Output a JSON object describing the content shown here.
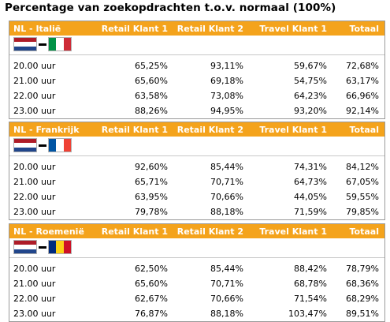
{
  "title": "Percentage van zoekopdrachten t.o.v. normaal (100%)",
  "columns": {
    "retail1": "Retail Klant 1",
    "retail2": "Retail Klant 2",
    "travel1": "Travel Klant 1",
    "total": "Totaal"
  },
  "sections": [
    {
      "label": "NL - Italië",
      "flag_left": {
        "name": "netherlands-flag",
        "orientation": "horizontal",
        "colors": [
          "#ae1c28",
          "#ffffff",
          "#21468b"
        ]
      },
      "flag_right": {
        "name": "italy-flag",
        "orientation": "vertical",
        "colors": [
          "#009246",
          "#ffffff",
          "#ce2b37"
        ]
      },
      "rows": [
        {
          "time": "20.00 uur",
          "retail1": "65,25%",
          "retail2": "93,11%",
          "travel1": "59,67%",
          "total": "72,68%"
        },
        {
          "time": "21.00 uur",
          "retail1": "65,60%",
          "retail2": "69,18%",
          "travel1": "54,75%",
          "total": "63,17%"
        },
        {
          "time": "22.00 uur",
          "retail1": "63,58%",
          "retail2": "73,08%",
          "travel1": "64,23%",
          "total": "66,96%"
        },
        {
          "time": "23.00 uur",
          "retail1": "88,26%",
          "retail2": "94,95%",
          "travel1": "93,20%",
          "total": "92,14%"
        }
      ]
    },
    {
      "label": "NL - Frankrijk",
      "flag_left": {
        "name": "netherlands-flag",
        "orientation": "horizontal",
        "colors": [
          "#ae1c28",
          "#ffffff",
          "#21468b"
        ]
      },
      "flag_right": {
        "name": "france-flag",
        "orientation": "vertical",
        "colors": [
          "#0055a4",
          "#ffffff",
          "#ef4135"
        ]
      },
      "rows": [
        {
          "time": "20.00 uur",
          "retail1": "92,60%",
          "retail2": "85,44%",
          "travel1": "74,31%",
          "total": "84,12%"
        },
        {
          "time": "21.00 uur",
          "retail1": "65,71%",
          "retail2": "70,71%",
          "travel1": "64,73%",
          "total": "67,05%"
        },
        {
          "time": "22.00 uur",
          "retail1": "63,95%",
          "retail2": "70,66%",
          "travel1": "44,05%",
          "total": "59,55%"
        },
        {
          "time": "23.00 uur",
          "retail1": "79,78%",
          "retail2": "88,18%",
          "travel1": "71,59%",
          "total": "79,85%"
        }
      ]
    },
    {
      "label": "NL - Roemenië",
      "flag_left": {
        "name": "netherlands-flag",
        "orientation": "horizontal",
        "colors": [
          "#ae1c28",
          "#ffffff",
          "#21468b"
        ]
      },
      "flag_right": {
        "name": "romania-flag",
        "orientation": "vertical",
        "colors": [
          "#002b7f",
          "#fcd116",
          "#ce1126"
        ]
      },
      "rows": [
        {
          "time": "20.00 uur",
          "retail1": "62,50%",
          "retail2": "85,44%",
          "travel1": "88,42%",
          "total": "78,79%"
        },
        {
          "time": "21.00 uur",
          "retail1": "65,60%",
          "retail2": "70,71%",
          "travel1": "68,78%",
          "total": "68,36%"
        },
        {
          "time": "22.00 uur",
          "retail1": "62,67%",
          "retail2": "70,66%",
          "travel1": "71,54%",
          "total": "68,29%"
        },
        {
          "time": "23.00 uur",
          "retail1": "76,87%",
          "retail2": "88,18%",
          "travel1": "103,47%",
          "total": "89,51%"
        }
      ]
    }
  ]
}
